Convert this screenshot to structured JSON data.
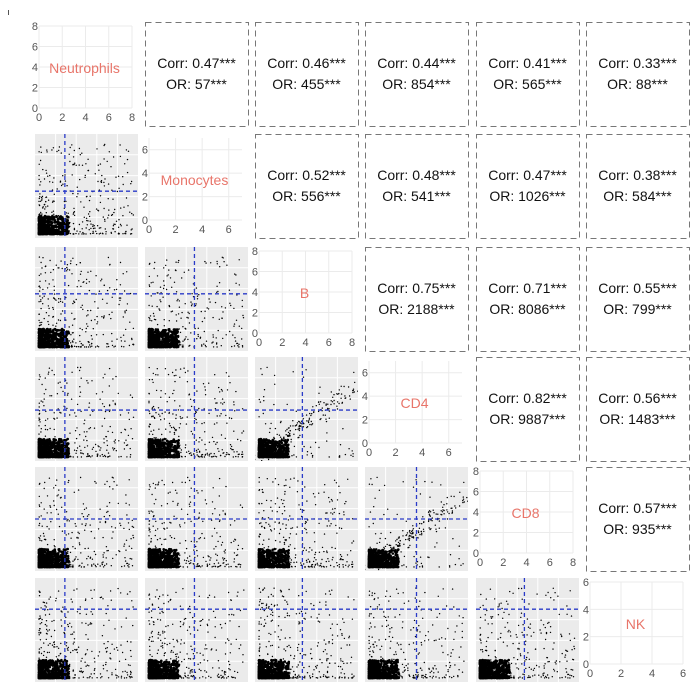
{
  "chart_data": {
    "type": "scatter",
    "variables": [
      "Neutrophils",
      "Monocytes",
      "B",
      "CD4",
      "CD8",
      "NK"
    ],
    "label_color": "#e8756a",
    "grid_color": "#ebebeb",
    "panel_bg": "#ebebeb",
    "point_color": "#000000",
    "threshold_line_color": "#2a3bc8",
    "diagonal_axes": [
      {
        "variable": "Neutrophils",
        "range": [
          0,
          8
        ],
        "ticks": [
          0,
          2,
          4,
          6,
          8
        ]
      },
      {
        "variable": "Monocytes",
        "range": [
          0,
          7
        ],
        "ticks": [
          0,
          2,
          4,
          6
        ]
      },
      {
        "variable": "B",
        "range": [
          0,
          8
        ],
        "ticks": [
          0,
          2,
          4,
          6,
          8
        ]
      },
      {
        "variable": "CD4",
        "range": [
          0,
          7
        ],
        "ticks": [
          0,
          2,
          4,
          6
        ]
      },
      {
        "variable": "CD8",
        "range": [
          0,
          8
        ],
        "ticks": [
          0,
          2,
          4,
          6,
          8
        ]
      },
      {
        "variable": "NK",
        "range": [
          0,
          6
        ],
        "ticks": [
          0,
          2,
          4,
          6
        ]
      }
    ],
    "upper_panels": [
      {
        "row": 0,
        "col": 1,
        "corr": "Corr: 0.47***",
        "or": "OR: 57***"
      },
      {
        "row": 0,
        "col": 2,
        "corr": "Corr: 0.46***",
        "or": "OR: 455***"
      },
      {
        "row": 0,
        "col": 3,
        "corr": "Corr: 0.44***",
        "or": "OR: 854***"
      },
      {
        "row": 0,
        "col": 4,
        "corr": "Corr: 0.41***",
        "or": "OR: 565***"
      },
      {
        "row": 0,
        "col": 5,
        "corr": "Corr: 0.33***",
        "or": "OR: 88***"
      },
      {
        "row": 1,
        "col": 2,
        "corr": "Corr: 0.52***",
        "or": "OR: 556***"
      },
      {
        "row": 1,
        "col": 3,
        "corr": "Corr: 0.48***",
        "or": "OR: 541***"
      },
      {
        "row": 1,
        "col": 4,
        "corr": "Corr: 0.47***",
        "or": "OR: 1026***"
      },
      {
        "row": 1,
        "col": 5,
        "corr": "Corr: 0.38***",
        "or": "OR: 584***"
      },
      {
        "row": 2,
        "col": 3,
        "corr": "Corr: 0.75***",
        "or": "OR: 2188***"
      },
      {
        "row": 2,
        "col": 4,
        "corr": "Corr: 0.71***",
        "or": "OR: 8086***"
      },
      {
        "row": 2,
        "col": 5,
        "corr": "Corr: 0.55***",
        "or": "OR: 799***"
      },
      {
        "row": 3,
        "col": 4,
        "corr": "Corr: 0.82***",
        "or": "OR: 9887***"
      },
      {
        "row": 3,
        "col": 5,
        "corr": "Corr: 0.56***",
        "or": "OR: 1483***"
      },
      {
        "row": 4,
        "col": 5,
        "corr": "Corr: 0.57***",
        "or": "OR: 935***"
      }
    ],
    "lower_panels": [
      {
        "row": 1,
        "col": 0,
        "x_threshold_frac": 0.29,
        "y_threshold_frac": 0.55
      },
      {
        "row": 2,
        "col": 0,
        "x_threshold_frac": 0.29,
        "y_threshold_frac": 0.45
      },
      {
        "row": 2,
        "col": 1,
        "x_threshold_frac": 0.48,
        "y_threshold_frac": 0.45
      },
      {
        "row": 3,
        "col": 0,
        "x_threshold_frac": 0.29,
        "y_threshold_frac": 0.51
      },
      {
        "row": 3,
        "col": 1,
        "x_threshold_frac": 0.48,
        "y_threshold_frac": 0.51
      },
      {
        "row": 3,
        "col": 2,
        "x_threshold_frac": 0.46,
        "y_threshold_frac": 0.51
      },
      {
        "row": 4,
        "col": 0,
        "x_threshold_frac": 0.29,
        "y_threshold_frac": 0.5
      },
      {
        "row": 4,
        "col": 1,
        "x_threshold_frac": 0.48,
        "y_threshold_frac": 0.5
      },
      {
        "row": 4,
        "col": 2,
        "x_threshold_frac": 0.46,
        "y_threshold_frac": 0.5
      },
      {
        "row": 4,
        "col": 3,
        "x_threshold_frac": 0.5,
        "y_threshold_frac": 0.5
      },
      {
        "row": 5,
        "col": 0,
        "x_threshold_frac": 0.29,
        "y_threshold_frac": 0.3
      },
      {
        "row": 5,
        "col": 1,
        "x_threshold_frac": 0.48,
        "y_threshold_frac": 0.3
      },
      {
        "row": 5,
        "col": 2,
        "x_threshold_frac": 0.46,
        "y_threshold_frac": 0.3
      },
      {
        "row": 5,
        "col": 3,
        "x_threshold_frac": 0.5,
        "y_threshold_frac": 0.3
      },
      {
        "row": 5,
        "col": 4,
        "x_threshold_frac": 0.47,
        "y_threshold_frac": 0.3
      }
    ]
  }
}
